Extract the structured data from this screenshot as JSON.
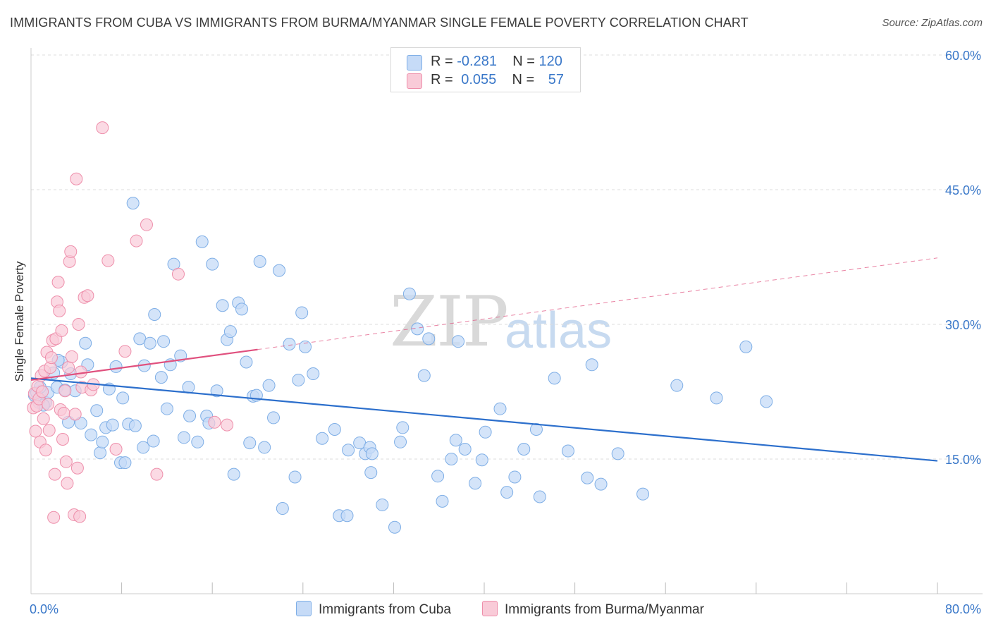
{
  "title": "IMMIGRANTS FROM CUBA VS IMMIGRANTS FROM BURMA/MYANMAR SINGLE FEMALE POVERTY CORRELATION CHART",
  "source": "Source: ZipAtlas.com",
  "watermark": {
    "zip": "ZIP",
    "atlas": "atlas"
  },
  "colors": {
    "cuba_fill": "#c6dbf7",
    "cuba_stroke": "#7eaee6",
    "cuba_line": "#2c6fcc",
    "burma_fill": "#f9cbd8",
    "burma_stroke": "#ee8fab",
    "burma_line": "#e0507e",
    "axis_text": "#3a78c9",
    "grid": "#dddddd"
  },
  "legend": {
    "rows": [
      {
        "r_label": "R =",
        "r_value": "-0.281",
        "n_label": "N =",
        "n_value": "120"
      },
      {
        "r_label": "R =",
        "r_value": "0.055",
        "n_label": "N =",
        "n_value": "57"
      }
    ]
  },
  "bottom_legend": [
    "Immigrants from Cuba",
    "Immigrants from Burma/Myanmar"
  ],
  "chart_data": {
    "type": "scatter",
    "title": "IMMIGRANTS FROM CUBA VS IMMIGRANTS FROM BURMA/MYANMAR SINGLE FEMALE POVERTY CORRELATION CHART",
    "xlabel": "",
    "ylabel": "Single Female Poverty",
    "xlim": [
      0,
      80
    ],
    "ylim": [
      0,
      60
    ],
    "x_tick_labels": [
      "0.0%",
      "80.0%"
    ],
    "y_ticks": [
      15,
      30,
      45,
      60
    ],
    "y_tick_labels": [
      "15.0%",
      "30.0%",
      "45.0%",
      "60.0%"
    ],
    "grid": true,
    "series": [
      {
        "name": "Immigrants from Cuba",
        "trend": {
          "x0": 0,
          "y0": 24.0,
          "x1": 80,
          "y1": 14.8
        },
        "points": [
          [
            0.3,
            22.1
          ],
          [
            0.5,
            22.4
          ],
          [
            0.7,
            21.3
          ],
          [
            0.9,
            22.6
          ],
          [
            1.3,
            21.3
          ],
          [
            1.5,
            22.4
          ],
          [
            2.0,
            24.6
          ],
          [
            2.3,
            23.0
          ],
          [
            2.7,
            25.8
          ],
          [
            3.3,
            19.1
          ],
          [
            3.5,
            24.5
          ],
          [
            3.9,
            22.6
          ],
          [
            4.4,
            19.0
          ],
          [
            4.8,
            27.9
          ],
          [
            5.0,
            25.5
          ],
          [
            5.3,
            17.7
          ],
          [
            5.8,
            20.4
          ],
          [
            6.1,
            15.7
          ],
          [
            6.3,
            16.9
          ],
          [
            6.6,
            18.5
          ],
          [
            6.9,
            22.8
          ],
          [
            7.2,
            18.8
          ],
          [
            7.5,
            25.3
          ],
          [
            7.9,
            14.6
          ],
          [
            8.1,
            21.8
          ],
          [
            8.3,
            14.6
          ],
          [
            8.6,
            18.9
          ],
          [
            9.0,
            43.5
          ],
          [
            9.2,
            18.7
          ],
          [
            9.6,
            28.4
          ],
          [
            9.9,
            16.3
          ],
          [
            10.0,
            25.4
          ],
          [
            10.5,
            27.9
          ],
          [
            10.8,
            17.0
          ],
          [
            10.9,
            31.1
          ],
          [
            11.5,
            24.1
          ],
          [
            11.7,
            28.1
          ],
          [
            12.0,
            20.6
          ],
          [
            12.3,
            25.5
          ],
          [
            12.6,
            36.7
          ],
          [
            13.2,
            26.5
          ],
          [
            13.5,
            17.4
          ],
          [
            13.9,
            23.0
          ],
          [
            14.0,
            19.8
          ],
          [
            14.7,
            16.9
          ],
          [
            15.1,
            39.2
          ],
          [
            15.5,
            19.8
          ],
          [
            15.7,
            19.0
          ],
          [
            16.0,
            36.7
          ],
          [
            16.4,
            22.6
          ],
          [
            16.9,
            32.1
          ],
          [
            17.3,
            28.3
          ],
          [
            17.6,
            29.2
          ],
          [
            17.9,
            13.3
          ],
          [
            18.3,
            32.4
          ],
          [
            18.6,
            31.7
          ],
          [
            19.0,
            25.8
          ],
          [
            19.3,
            16.8
          ],
          [
            19.6,
            22.0
          ],
          [
            19.9,
            22.1
          ],
          [
            20.2,
            37.0
          ],
          [
            20.6,
            16.3
          ],
          [
            21.0,
            23.2
          ],
          [
            21.4,
            19.6
          ],
          [
            21.9,
            36.0
          ],
          [
            22.2,
            9.5
          ],
          [
            22.8,
            27.8
          ],
          [
            23.3,
            13.0
          ],
          [
            23.6,
            23.8
          ],
          [
            23.9,
            31.3
          ],
          [
            24.2,
            27.5
          ],
          [
            24.9,
            24.5
          ],
          [
            25.7,
            17.3
          ],
          [
            26.8,
            18.3
          ],
          [
            27.2,
            8.7
          ],
          [
            27.9,
            8.7
          ],
          [
            28.0,
            16.0
          ],
          [
            29.0,
            16.8
          ],
          [
            29.5,
            15.6
          ],
          [
            29.9,
            16.3
          ],
          [
            30.0,
            13.5
          ],
          [
            30.1,
            15.6
          ],
          [
            31.0,
            9.9
          ],
          [
            32.1,
            7.4
          ],
          [
            32.6,
            16.9
          ],
          [
            32.8,
            18.5
          ],
          [
            33.4,
            33.4
          ],
          [
            34.1,
            29.5
          ],
          [
            34.7,
            24.3
          ],
          [
            35.1,
            28.4
          ],
          [
            35.9,
            13.1
          ],
          [
            36.3,
            10.3
          ],
          [
            37.1,
            15.0
          ],
          [
            37.5,
            17.1
          ],
          [
            37.7,
            28.1
          ],
          [
            38.3,
            16.1
          ],
          [
            39.2,
            12.3
          ],
          [
            39.8,
            14.9
          ],
          [
            40.1,
            18.0
          ],
          [
            41.4,
            20.6
          ],
          [
            42.0,
            11.3
          ],
          [
            42.7,
            13.0
          ],
          [
            43.5,
            16.1
          ],
          [
            44.6,
            18.3
          ],
          [
            44.9,
            10.8
          ],
          [
            46.2,
            24.0
          ],
          [
            47.4,
            15.9
          ],
          [
            49.1,
            12.9
          ],
          [
            49.5,
            25.5
          ],
          [
            50.3,
            12.2
          ],
          [
            51.8,
            15.6
          ],
          [
            54.0,
            11.1
          ],
          [
            57.0,
            23.2
          ],
          [
            60.5,
            21.8
          ],
          [
            63.1,
            27.5
          ],
          [
            64.9,
            21.4
          ],
          [
            1.1,
            21.0
          ],
          [
            3.0,
            22.7
          ],
          [
            0.8,
            23.0
          ],
          [
            2.4,
            26.0
          ]
        ]
      },
      {
        "name": "Immigrants from Burma/Myanmar",
        "trend": {
          "x0": 0,
          "y0": 23.8,
          "x1": 20,
          "y1": 27.2,
          "dashed_to": {
            "x": 80,
            "y": 37.4
          }
        },
        "points": [
          [
            0.2,
            20.7
          ],
          [
            0.3,
            22.3
          ],
          [
            0.4,
            18.1
          ],
          [
            0.5,
            20.9
          ],
          [
            0.6,
            23.1
          ],
          [
            0.7,
            21.7
          ],
          [
            0.8,
            16.9
          ],
          [
            0.9,
            24.3
          ],
          [
            1.0,
            22.5
          ],
          [
            1.1,
            19.5
          ],
          [
            1.2,
            24.8
          ],
          [
            1.3,
            16.0
          ],
          [
            1.4,
            26.9
          ],
          [
            1.5,
            21.1
          ],
          [
            1.6,
            18.2
          ],
          [
            1.7,
            25.2
          ],
          [
            1.8,
            26.3
          ],
          [
            1.9,
            28.2
          ],
          [
            2.0,
            8.5
          ],
          [
            2.1,
            13.3
          ],
          [
            2.2,
            28.4
          ],
          [
            2.3,
            32.5
          ],
          [
            2.4,
            34.7
          ],
          [
            2.5,
            31.5
          ],
          [
            2.6,
            20.5
          ],
          [
            2.7,
            29.3
          ],
          [
            2.8,
            17.2
          ],
          [
            2.9,
            20.1
          ],
          [
            3.0,
            22.6
          ],
          [
            3.1,
            14.7
          ],
          [
            3.2,
            12.3
          ],
          [
            3.3,
            25.2
          ],
          [
            3.4,
            37.0
          ],
          [
            3.5,
            38.1
          ],
          [
            3.6,
            26.4
          ],
          [
            3.8,
            8.8
          ],
          [
            3.9,
            20.0
          ],
          [
            4.0,
            46.2
          ],
          [
            4.1,
            14.0
          ],
          [
            4.2,
            30.0
          ],
          [
            4.3,
            8.6
          ],
          [
            4.4,
            24.7
          ],
          [
            4.5,
            23.0
          ],
          [
            4.7,
            33.0
          ],
          [
            5.0,
            33.2
          ],
          [
            5.3,
            22.7
          ],
          [
            5.5,
            23.3
          ],
          [
            6.3,
            51.9
          ],
          [
            6.8,
            37.1
          ],
          [
            7.5,
            16.1
          ],
          [
            8.3,
            27.0
          ],
          [
            9.3,
            39.3
          ],
          [
            10.2,
            41.1
          ],
          [
            11.1,
            13.3
          ],
          [
            13.0,
            35.6
          ],
          [
            16.2,
            19.1
          ],
          [
            17.3,
            18.8
          ]
        ]
      }
    ]
  }
}
